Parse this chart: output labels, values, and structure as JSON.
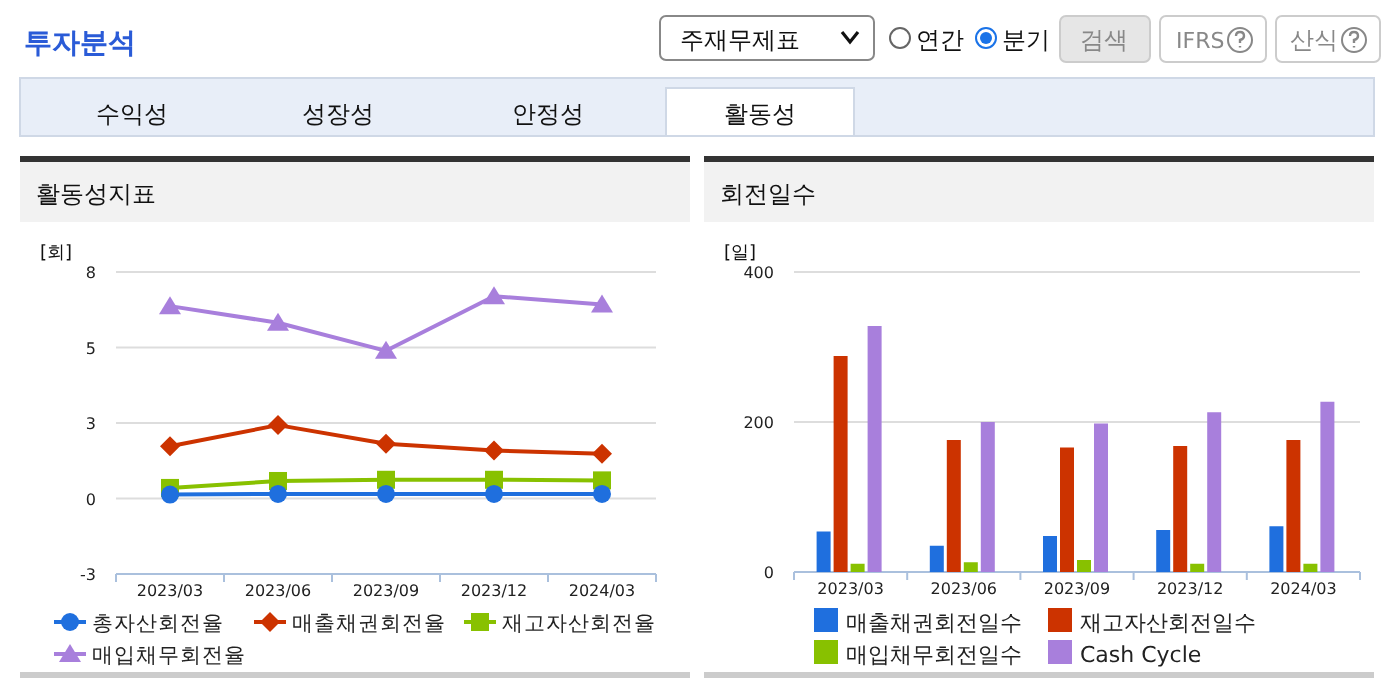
{
  "chart_data": [
    {
      "type": "other",
      "title": "투자분석",
      "annotations": [
        "주재무제표",
        "연간",
        "분기",
        "검색",
        "IFRS",
        "산식",
        "수익성",
        "성장성",
        "안정성",
        "활동성"
      ]
    },
    {
      "type": "line",
      "title": "활동성지표",
      "ylabel": "[회]",
      "categories": [
        "2023/03",
        "2023/06",
        "2023/09",
        "2023/12",
        "2024/03"
      ],
      "ylim": [
        -2.5,
        7.5
      ],
      "yticks": [
        {
          "value": -2.5,
          "label": "-3"
        },
        0,
        {
          "value": 2.5,
          "label": "3"
        },
        5,
        {
          "value": 7.5,
          "label": "8"
        }
      ],
      "grid": "y",
      "legend": "bottom",
      "series": [
        {
          "name": "총자산회전율",
          "color": "#1f6fde",
          "marker": "circle",
          "values": [
            0.13,
            0.15,
            0.15,
            0.15,
            0.15
          ]
        },
        {
          "name": "매출채권회전율",
          "color": "#cc3300",
          "marker": "diamond",
          "values": [
            1.73,
            2.43,
            1.81,
            1.59,
            1.48
          ]
        },
        {
          "name": "재고자산회전율",
          "color": "#88c100",
          "marker": "square",
          "values": [
            0.35,
            0.58,
            0.62,
            0.62,
            0.6
          ]
        },
        {
          "name": "매입채무회전율",
          "color": "#a87fdc",
          "marker": "triangle",
          "values": [
            6.37,
            5.82,
            4.89,
            6.7,
            6.42
          ]
        }
      ]
    },
    {
      "type": "bar",
      "title": "회전일수",
      "ylabel": "[일]",
      "categories": [
        "2023/03",
        "2023/06",
        "2023/09",
        "2023/12",
        "2024/03"
      ],
      "ylim": [
        0,
        400
      ],
      "yticks": [
        0,
        200,
        400
      ],
      "grid": "y",
      "legend": "bottom",
      "series": [
        {
          "name": "매출채권회전일수",
          "color": "#1f6fde",
          "values": [
            54,
            35,
            48,
            56,
            61
          ]
        },
        {
          "name": "재고자산회전일수",
          "color": "#cc3300",
          "values": [
            288,
            176,
            166,
            168,
            176
          ]
        },
        {
          "name": "매입채무회전일수",
          "color": "#88c100",
          "values": [
            11,
            13,
            16,
            11,
            11
          ]
        },
        {
          "name": "Cash Cycle",
          "color": "#a87fdc",
          "values": [
            328,
            200,
            198,
            213,
            227
          ]
        }
      ]
    }
  ]
}
